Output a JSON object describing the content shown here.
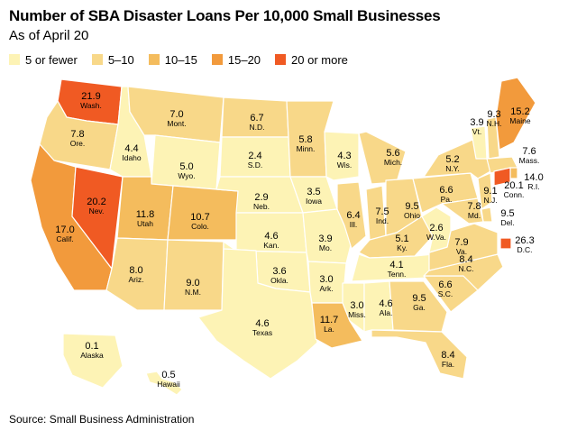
{
  "header": {
    "title": "Number of SBA Disaster Loans Per 10,000 Small Businesses",
    "subtitle": "As of April 20"
  },
  "legend": [
    {
      "label": "5 or fewer",
      "color": "#fdf3b5"
    },
    {
      "label": "5–10",
      "color": "#f8d889"
    },
    {
      "label": "10–15",
      "color": "#f4bc5d"
    },
    {
      "label": "15–20",
      "color": "#f29a3c"
    },
    {
      "label": "20 or more",
      "color": "#f05a23"
    }
  ],
  "source": "Source: Small Business Administration",
  "states": [
    {
      "abbr": "Wash.",
      "value": "21.9"
    },
    {
      "abbr": "Ore.",
      "value": "7.8"
    },
    {
      "abbr": "Calif.",
      "value": "17.0"
    },
    {
      "abbr": "Nev.",
      "value": "20.2"
    },
    {
      "abbr": "Idaho",
      "value": "4.4"
    },
    {
      "abbr": "Mont.",
      "value": "7.0"
    },
    {
      "abbr": "Wyo.",
      "value": "5.0"
    },
    {
      "abbr": "Utah",
      "value": "11.8"
    },
    {
      "abbr": "Colo.",
      "value": "10.7"
    },
    {
      "abbr": "Ariz.",
      "value": "8.0"
    },
    {
      "abbr": "N.M.",
      "value": "9.0"
    },
    {
      "abbr": "N.D.",
      "value": "6.7"
    },
    {
      "abbr": "S.D.",
      "value": "2.4"
    },
    {
      "abbr": "Neb.",
      "value": "2.9"
    },
    {
      "abbr": "Kan.",
      "value": "4.6"
    },
    {
      "abbr": "Okla.",
      "value": "3.6"
    },
    {
      "abbr": "Texas",
      "value": "4.6"
    },
    {
      "abbr": "Minn.",
      "value": "5.8"
    },
    {
      "abbr": "Iowa",
      "value": "3.5"
    },
    {
      "abbr": "Mo.",
      "value": "3.9"
    },
    {
      "abbr": "Ark.",
      "value": "3.0"
    },
    {
      "abbr": "La.",
      "value": "11.7"
    },
    {
      "abbr": "Wis.",
      "value": "4.3"
    },
    {
      "abbr": "Ill.",
      "value": "6.4"
    },
    {
      "abbr": "Mich.",
      "value": "5.6"
    },
    {
      "abbr": "Ind.",
      "value": "7.5"
    },
    {
      "abbr": "Ohio",
      "value": "9.5"
    },
    {
      "abbr": "Ky.",
      "value": "5.1"
    },
    {
      "abbr": "Tenn.",
      "value": "4.1"
    },
    {
      "abbr": "Miss.",
      "value": "3.0"
    },
    {
      "abbr": "Ala.",
      "value": "4.6"
    },
    {
      "abbr": "Ga.",
      "value": "9.5"
    },
    {
      "abbr": "Fla.",
      "value": "8.4"
    },
    {
      "abbr": "S.C.",
      "value": "6.6"
    },
    {
      "abbr": "N.C.",
      "value": "8.4"
    },
    {
      "abbr": "Va.",
      "value": "7.9"
    },
    {
      "abbr": "W.Va.",
      "value": "2.6"
    },
    {
      "abbr": "Pa.",
      "value": "6.6"
    },
    {
      "abbr": "N.Y.",
      "value": "5.2"
    },
    {
      "abbr": "Vt.",
      "value": "3.9"
    },
    {
      "abbr": "N.H.",
      "value": "9.3"
    },
    {
      "abbr": "Maine",
      "value": "15.2"
    },
    {
      "abbr": "Mass.",
      "value": "7.6"
    },
    {
      "abbr": "R.I.",
      "value": "14.0"
    },
    {
      "abbr": "Conn.",
      "value": "20.1"
    },
    {
      "abbr": "N.J.",
      "value": "9.1"
    },
    {
      "abbr": "Del.",
      "value": "9.5"
    },
    {
      "abbr": "Md.",
      "value": "7.8"
    },
    {
      "abbr": "D.C.",
      "value": "26.3"
    },
    {
      "abbr": "Alaska",
      "value": "0.1"
    },
    {
      "abbr": "Hawaii",
      "value": "0.5"
    }
  ]
}
